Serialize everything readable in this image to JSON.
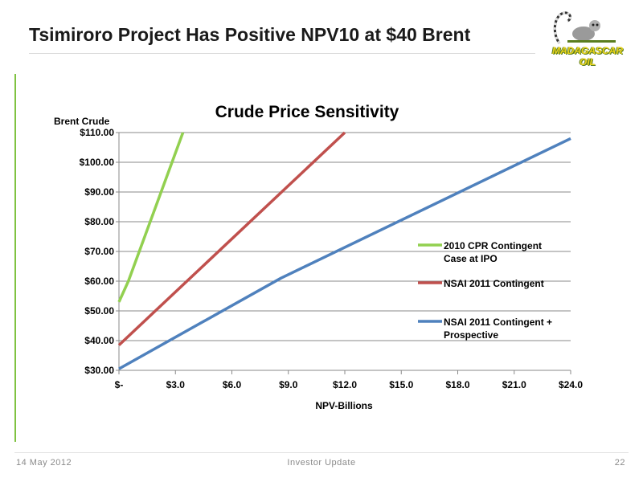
{
  "slide": {
    "title": "Tsimiroro Project Has Positive NPV10 at $40 Brent",
    "logo_text": "MADAGASCAR OIL"
  },
  "footer": {
    "date": "14 May 2012",
    "center": "Investor Update",
    "page": "22"
  },
  "colors": {
    "accent_green": "#7fc241",
    "series_green": "#92d050",
    "series_red": "#c0504d",
    "series_blue": "#4f81bd"
  },
  "icons": [
    "lemur-logo-icon"
  ],
  "chart_data": {
    "type": "line",
    "title": "Crude Price Sensitivity",
    "xlabel": "NPV-Billions",
    "ylabel": "Brent Crude",
    "xlim": [
      0,
      24
    ],
    "ylim": [
      30,
      110
    ],
    "xticks": [
      0,
      3,
      6,
      9,
      12,
      15,
      18,
      21,
      24
    ],
    "xtick_labels": [
      "$-",
      "$3.0",
      "$6.0",
      "$9.0",
      "$12.0",
      "$15.0",
      "$18.0",
      "$21.0",
      "$24.0"
    ],
    "yticks": [
      30,
      40,
      50,
      60,
      70,
      80,
      90,
      100,
      110
    ],
    "ytick_labels": [
      "$30.00",
      "$40.00",
      "$50.00",
      "$60.00",
      "$70.00",
      "$80.00",
      "$90.00",
      "$100.00",
      "$110.00"
    ],
    "grid": true,
    "legend_position": "right",
    "series": [
      {
        "name": "2010 CPR Contingent Case at IPO",
        "color": "#92d050",
        "points": [
          [
            0,
            53
          ],
          [
            0.5,
            60
          ],
          [
            3.4,
            110
          ]
        ]
      },
      {
        "name": "NSAI 2011 Contingent",
        "color": "#c0504d",
        "points": [
          [
            0,
            38.5
          ],
          [
            12,
            110
          ]
        ]
      },
      {
        "name": "NSAI 2011 Contingent + Prospective",
        "color": "#4f81bd",
        "points": [
          [
            0,
            30.5
          ],
          [
            8.6,
            61
          ],
          [
            24,
            108
          ]
        ]
      }
    ]
  }
}
